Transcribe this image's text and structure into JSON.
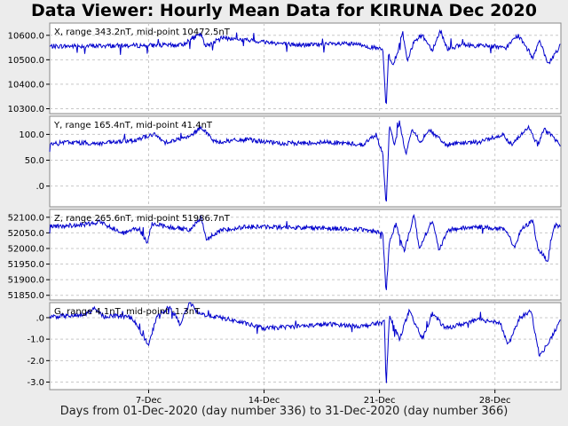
{
  "chart_data": {
    "type": "line",
    "title": "Data Viewer:  Hourly Mean Data for KIRUNA Dec 2020",
    "xlabel": "Days from 01-Dec-2020 (day number 336) to 31-Dec-2020 (day number 366)",
    "x_ticks": [
      "7-Dec",
      "14-Dec",
      "21-Dec",
      "28-Dec"
    ],
    "x_tick_days": [
      7,
      14,
      21,
      28
    ],
    "xlim": [
      1,
      32
    ],
    "line_color": "#0000cc",
    "grid": true,
    "panels": [
      {
        "name": "X",
        "label": "X, range 343.2nT, mid-point 10472.5nT",
        "ylim": [
          10280,
          10650
        ],
        "y_ticks": [
          10300,
          10400,
          10500,
          10600
        ],
        "y_tick_labels": [
          "10300.0",
          "10400.0",
          "10500.0",
          "10600.0"
        ],
        "baseline": 10555,
        "keypoints": [
          [
            1,
            10555
          ],
          [
            9,
            10560
          ],
          [
            9.6,
            10585
          ],
          [
            10.2,
            10605
          ],
          [
            10.4,
            10555
          ],
          [
            11.5,
            10590
          ],
          [
            16,
            10560
          ],
          [
            19,
            10565
          ],
          [
            20,
            10560
          ],
          [
            21.2,
            10540
          ],
          [
            21.4,
            10300
          ],
          [
            21.55,
            10520
          ],
          [
            21.8,
            10480
          ],
          [
            22.1,
            10530
          ],
          [
            22.4,
            10615
          ],
          [
            22.7,
            10490
          ],
          [
            23.1,
            10580
          ],
          [
            23.6,
            10600
          ],
          [
            24.2,
            10540
          ],
          [
            24.7,
            10620
          ],
          [
            25.1,
            10545
          ],
          [
            26,
            10560
          ],
          [
            28,
            10555
          ],
          [
            28.6,
            10545
          ],
          [
            29.4,
            10600
          ],
          [
            30.3,
            10510
          ],
          [
            30.7,
            10580
          ],
          [
            31.2,
            10480
          ],
          [
            32,
            10560
          ]
        ]
      },
      {
        "name": "Y",
        "label": "Y, range 165.4nT, mid-point 41.4nT",
        "ylim": [
          -40,
          135
        ],
        "y_ticks": [
          0,
          50,
          100
        ],
        "y_tick_labels": [
          ".0",
          "50.0",
          "100.0"
        ],
        "baseline": 80,
        "keypoints": [
          [
            1,
            80
          ],
          [
            2,
            85
          ],
          [
            4,
            82
          ],
          [
            6,
            88
          ],
          [
            7.3,
            100
          ],
          [
            8,
            85
          ],
          [
            9.5,
            95
          ],
          [
            10.2,
            115
          ],
          [
            11,
            85
          ],
          [
            13,
            90
          ],
          [
            15,
            82
          ],
          [
            18,
            85
          ],
          [
            20,
            80
          ],
          [
            20.8,
            100
          ],
          [
            21.2,
            60
          ],
          [
            21.4,
            -40
          ],
          [
            21.6,
            120
          ],
          [
            21.9,
            75
          ],
          [
            22.2,
            125
          ],
          [
            22.6,
            60
          ],
          [
            23,
            110
          ],
          [
            23.5,
            85
          ],
          [
            24,
            110
          ],
          [
            25,
            80
          ],
          [
            27,
            85
          ],
          [
            28.5,
            100
          ],
          [
            29,
            80
          ],
          [
            30,
            115
          ],
          [
            30.6,
            80
          ],
          [
            31,
            110
          ],
          [
            32,
            80
          ]
        ]
      },
      {
        "name": "Z",
        "label": "Z, range 265.6nT, mid-point 51986.7nT",
        "ylim": [
          51835,
          52125
        ],
        "y_ticks": [
          51850,
          51900,
          51950,
          52000,
          52050,
          52100
        ],
        "y_tick_labels": [
          "51850.0",
          "51900.0",
          "51950.0",
          "52000.0",
          "52050.0",
          "52100.0"
        ],
        "baseline": 52070,
        "keypoints": [
          [
            1,
            52070
          ],
          [
            3,
            52075
          ],
          [
            4,
            52085
          ],
          [
            5.5,
            52050
          ],
          [
            6.4,
            52065
          ],
          [
            6.9,
            52020
          ],
          [
            7.2,
            52080
          ],
          [
            8,
            52070
          ],
          [
            9.5,
            52060
          ],
          [
            10.2,
            52100
          ],
          [
            10.5,
            52030
          ],
          [
            11.5,
            52060
          ],
          [
            13,
            52070
          ],
          [
            18,
            52065
          ],
          [
            20,
            52060
          ],
          [
            21.2,
            52050
          ],
          [
            21.4,
            51855
          ],
          [
            21.6,
            52020
          ],
          [
            22,
            52080
          ],
          [
            22.5,
            51990
          ],
          [
            23.1,
            52110
          ],
          [
            23.4,
            52000
          ],
          [
            24.2,
            52090
          ],
          [
            24.6,
            51995
          ],
          [
            25.2,
            52060
          ],
          [
            27,
            52070
          ],
          [
            28.6,
            52060
          ],
          [
            29.2,
            52005
          ],
          [
            29.6,
            52060
          ],
          [
            30.3,
            52090
          ],
          [
            30.6,
            52000
          ],
          [
            31.2,
            51960
          ],
          [
            31.6,
            52075
          ],
          [
            32,
            52070
          ]
        ]
      },
      {
        "name": "G",
        "label": "G, range 4.1nT, mid-point -1.3nT",
        "ylim": [
          -3.35,
          0.7
        ],
        "y_ticks": [
          -3,
          -2,
          -1,
          0
        ],
        "y_tick_labels": [
          "-3.0",
          "-2.0",
          "-1.0",
          ".0"
        ],
        "baseline": 0.05,
        "keypoints": [
          [
            1,
            0.05
          ],
          [
            3,
            0.1
          ],
          [
            3.7,
            0.4
          ],
          [
            4.3,
            0.05
          ],
          [
            5,
            0.1
          ],
          [
            6,
            0
          ],
          [
            7,
            -1.3
          ],
          [
            7.5,
            0.1
          ],
          [
            8.3,
            0.5
          ],
          [
            8.9,
            -0.3
          ],
          [
            9.5,
            0.7
          ],
          [
            10,
            0.2
          ],
          [
            12,
            -0.1
          ],
          [
            14,
            -0.5
          ],
          [
            18,
            -0.3
          ],
          [
            20,
            -0.4
          ],
          [
            21.3,
            -0.2
          ],
          [
            21.4,
            -3.3
          ],
          [
            21.6,
            0.1
          ],
          [
            22.2,
            -1
          ],
          [
            22.8,
            0.3
          ],
          [
            23.6,
            -1
          ],
          [
            24.2,
            0.2
          ],
          [
            25,
            -0.5
          ],
          [
            27,
            -0.1
          ],
          [
            28.3,
            -0.2
          ],
          [
            28.8,
            -1.3
          ],
          [
            29.5,
            0
          ],
          [
            30.2,
            0.3
          ],
          [
            30.7,
            -1.8
          ],
          [
            31.3,
            -1.1
          ],
          [
            32,
            -0.1
          ]
        ]
      }
    ]
  }
}
